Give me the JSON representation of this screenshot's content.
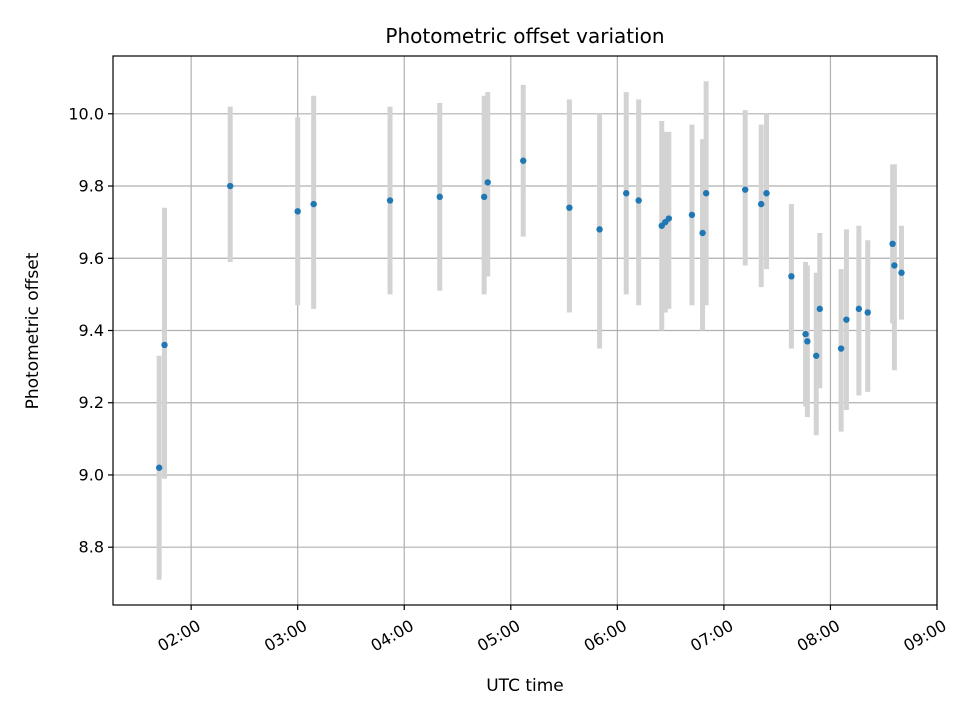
{
  "chart_data": {
    "type": "scatter",
    "title": "Photometric offset variation",
    "xlabel": "UTC time",
    "ylabel": "Photometric offset",
    "grid": true,
    "legend": "none",
    "x_axis": {
      "type": "time",
      "range": [
        "01:16",
        "09:00"
      ],
      "ticks": [
        "02:00",
        "03:00",
        "04:00",
        "05:00",
        "06:00",
        "07:00",
        "08:00",
        "09:00"
      ]
    },
    "y_axis": {
      "range": [
        8.64,
        10.16
      ],
      "ticks": [
        "8.8",
        "9.0",
        "9.2",
        "9.4",
        "9.6",
        "9.8",
        "10.0"
      ]
    },
    "colors": {
      "point": "#1f77b4",
      "error_bar": "#d3d3d3",
      "grid": "#b0b0b0"
    },
    "series": [
      {
        "points": [
          {
            "x": "01:42",
            "y": 9.02,
            "ylo": 8.71,
            "yhi": 9.33
          },
          {
            "x": "01:45",
            "y": 9.36,
            "ylo": 8.99,
            "yhi": 9.74
          },
          {
            "x": "02:22",
            "y": 9.8,
            "ylo": 9.59,
            "yhi": 10.02
          },
          {
            "x": "03:00",
            "y": 9.73,
            "ylo": 9.47,
            "yhi": 9.99
          },
          {
            "x": "03:09",
            "y": 9.75,
            "ylo": 9.46,
            "yhi": 10.05
          },
          {
            "x": "03:52",
            "y": 9.76,
            "ylo": 9.5,
            "yhi": 10.02
          },
          {
            "x": "04:20",
            "y": 9.77,
            "ylo": 9.51,
            "yhi": 10.03
          },
          {
            "x": "04:45",
            "y": 9.77,
            "ylo": 9.5,
            "yhi": 10.05
          },
          {
            "x": "04:47",
            "y": 9.81,
            "ylo": 9.55,
            "yhi": 10.06
          },
          {
            "x": "05:07",
            "y": 9.87,
            "ylo": 9.66,
            "yhi": 10.08
          },
          {
            "x": "05:33",
            "y": 9.74,
            "ylo": 9.45,
            "yhi": 10.04
          },
          {
            "x": "05:50",
            "y": 9.68,
            "ylo": 9.35,
            "yhi": 10.0
          },
          {
            "x": "06:05",
            "y": 9.78,
            "ylo": 9.5,
            "yhi": 10.06
          },
          {
            "x": "06:12",
            "y": 9.76,
            "ylo": 9.47,
            "yhi": 10.04
          },
          {
            "x": "06:25",
            "y": 9.69,
            "ylo": 9.4,
            "yhi": 9.98
          },
          {
            "x": "06:27",
            "y": 9.7,
            "ylo": 9.45,
            "yhi": 9.95
          },
          {
            "x": "06:29",
            "y": 9.71,
            "ylo": 9.46,
            "yhi": 9.95
          },
          {
            "x": "06:42",
            "y": 9.72,
            "ylo": 9.47,
            "yhi": 9.97
          },
          {
            "x": "06:48",
            "y": 9.67,
            "ylo": 9.4,
            "yhi": 9.93
          },
          {
            "x": "06:50",
            "y": 9.78,
            "ylo": 9.47,
            "yhi": 10.09
          },
          {
            "x": "07:12",
            "y": 9.79,
            "ylo": 9.58,
            "yhi": 10.01
          },
          {
            "x": "07:21",
            "y": 9.75,
            "ylo": 9.52,
            "yhi": 9.97
          },
          {
            "x": "07:24",
            "y": 9.78,
            "ylo": 9.57,
            "yhi": 10.0
          },
          {
            "x": "07:38",
            "y": 9.55,
            "ylo": 9.35,
            "yhi": 9.75
          },
          {
            "x": "07:46",
            "y": 9.39,
            "ylo": 9.19,
            "yhi": 9.59
          },
          {
            "x": "07:47",
            "y": 9.37,
            "ylo": 9.16,
            "yhi": 9.58
          },
          {
            "x": "07:52",
            "y": 9.33,
            "ylo": 9.11,
            "yhi": 9.56
          },
          {
            "x": "07:54",
            "y": 9.46,
            "ylo": 9.24,
            "yhi": 9.67
          },
          {
            "x": "08:06",
            "y": 9.35,
            "ylo": 9.12,
            "yhi": 9.57
          },
          {
            "x": "08:09",
            "y": 9.43,
            "ylo": 9.18,
            "yhi": 9.68
          },
          {
            "x": "08:16",
            "y": 9.46,
            "ylo": 9.22,
            "yhi": 9.69
          },
          {
            "x": "08:21",
            "y": 9.45,
            "ylo": 9.23,
            "yhi": 9.65
          },
          {
            "x": "08:35",
            "y": 9.64,
            "ylo": 9.42,
            "yhi": 9.86
          },
          {
            "x": "08:36",
            "y": 9.58,
            "ylo": 9.29,
            "yhi": 9.86
          },
          {
            "x": "08:40",
            "y": 9.56,
            "ylo": 9.43,
            "yhi": 9.69
          }
        ]
      }
    ]
  }
}
